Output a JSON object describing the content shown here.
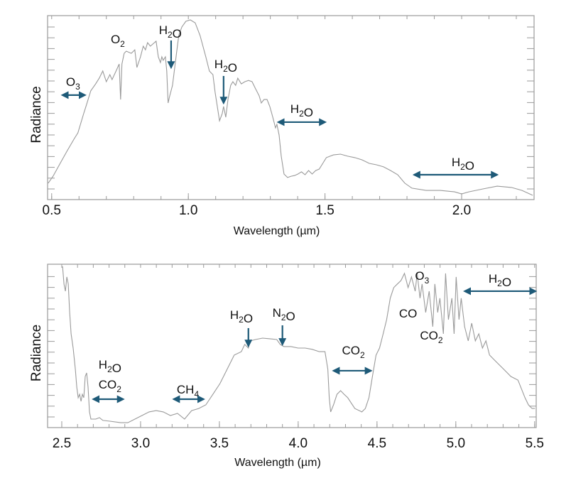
{
  "colors": {
    "curve": "#9a9a9a",
    "arrow": "#1e5a78",
    "frame": "#9a9a9a",
    "text": "#111111"
  },
  "chart_data": [
    {
      "type": "line",
      "title": "",
      "xlabel": "Wavelength (µm)",
      "ylabel": "Radiance",
      "xlim": [
        0.485,
        2.265
      ],
      "ylim": [
        0,
        1
      ],
      "xticks": [
        0.5,
        1.0,
        1.5,
        2.0
      ],
      "xtick_labels": [
        "0.5",
        "1.0",
        "1.5",
        "2.0"
      ],
      "series": [
        {
          "name": "spectrum",
          "x": [
            0.487,
            0.505,
            0.531,
            0.557,
            0.583,
            0.596,
            0.617,
            0.627,
            0.643,
            0.661,
            0.674,
            0.687,
            0.7,
            0.713,
            0.721,
            0.739,
            0.747,
            0.752,
            0.757,
            0.765,
            0.773,
            0.791,
            0.804,
            0.812,
            0.825,
            0.835,
            0.843,
            0.851,
            0.861,
            0.882,
            0.89,
            0.898,
            0.903,
            0.908,
            0.916,
            0.921,
            0.926,
            0.932,
            0.942,
            0.955,
            0.965,
            0.976,
            0.991,
            1.007,
            1.025,
            1.043,
            1.064,
            1.077,
            1.09,
            1.098,
            1.106,
            1.114,
            1.119,
            1.124,
            1.129,
            1.137,
            1.145,
            1.155,
            1.163,
            1.173,
            1.181,
            1.194,
            1.207,
            1.22,
            1.233,
            1.246,
            1.259,
            1.267,
            1.277,
            1.288,
            1.298,
            1.309,
            1.319,
            1.324,
            1.332,
            1.34,
            1.35,
            1.363,
            1.376,
            1.389,
            1.401,
            1.414,
            1.427,
            1.44,
            1.453,
            1.466,
            1.479,
            1.492,
            1.505,
            1.531,
            1.557,
            1.583,
            1.609,
            1.636,
            1.662,
            1.688,
            1.714,
            1.74,
            1.766,
            1.792,
            1.818,
            1.87,
            1.922,
            1.974,
            2.0,
            2.026,
            2.078,
            2.13,
            2.182,
            2.221,
            2.26
          ],
          "y": [
            0.089,
            0.127,
            0.197,
            0.266,
            0.332,
            0.363,
            0.467,
            0.513,
            0.591,
            0.629,
            0.66,
            0.699,
            0.641,
            0.679,
            0.652,
            0.71,
            0.737,
            0.544,
            0.737,
            0.795,
            0.807,
            0.795,
            0.814,
            0.718,
            0.776,
            0.834,
            0.814,
            0.853,
            0.834,
            0.861,
            0.776,
            0.745,
            0.776,
            0.757,
            0.776,
            0.699,
            0.525,
            0.564,
            0.621,
            0.776,
            0.892,
            0.938,
            0.969,
            0.977,
            0.961,
            0.892,
            0.776,
            0.699,
            0.679,
            0.583,
            0.506,
            0.428,
            0.448,
            0.467,
            0.506,
            0.448,
            0.544,
            0.621,
            0.641,
            0.621,
            0.66,
            0.629,
            0.641,
            0.648,
            0.641,
            0.602,
            0.564,
            0.525,
            0.544,
            0.544,
            0.506,
            0.448,
            0.39,
            0.409,
            0.351,
            0.236,
            0.139,
            0.12,
            0.127,
            0.131,
            0.139,
            0.151,
            0.135,
            0.158,
            0.139,
            0.158,
            0.166,
            0.197,
            0.228,
            0.243,
            0.247,
            0.236,
            0.228,
            0.216,
            0.197,
            0.189,
            0.178,
            0.158,
            0.135,
            0.089,
            0.062,
            0.05,
            0.05,
            0.042,
            0.031,
            0.042,
            0.058,
            0.073,
            0.066,
            0.05,
            0.023
          ]
        }
      ],
      "annotations": [
        {
          "label": "O3",
          "x": 0.578,
          "y": 0.64,
          "arrow": "double",
          "from": [
            0.539,
            0.568
          ],
          "to": [
            0.622,
            0.568
          ]
        },
        {
          "label": "O2",
          "x": 0.742,
          "y": 0.873,
          "arrow": "none"
        },
        {
          "label": "H2O",
          "x": 0.934,
          "y": 0.923,
          "arrow": "down",
          "from": [
            0.937,
            0.865
          ],
          "to": [
            0.937,
            0.718
          ]
        },
        {
          "label": "H2O",
          "x": 1.137,
          "y": 0.737,
          "arrow": "down",
          "from": [
            1.129,
            0.672
          ],
          "to": [
            1.129,
            0.525
          ]
        },
        {
          "label": "H2O",
          "x": 1.415,
          "y": 0.494,
          "arrow": "double",
          "from": [
            1.329,
            0.421
          ],
          "to": [
            1.501,
            0.421
          ]
        },
        {
          "label": "H2O",
          "x": 2.005,
          "y": 0.205,
          "arrow": "double",
          "from": [
            1.826,
            0.135
          ],
          "to": [
            2.13,
            0.135
          ]
        }
      ]
    },
    {
      "type": "line",
      "title": "",
      "xlabel": "Wavelength (µm)",
      "ylabel": "Radiance",
      "xlim": [
        2.41,
        5.51
      ],
      "ylim": [
        0,
        1
      ],
      "xticks": [
        2.5,
        3.0,
        3.5,
        4.0,
        4.5,
        5.0,
        5.5
      ],
      "xtick_labels": [
        "2.5",
        "3.0",
        "3.5",
        "4.0",
        "4.5",
        "5.0",
        "5.5"
      ],
      "series": [
        {
          "name": "spectrum",
          "x": [
            2.505,
            2.514,
            2.523,
            2.532,
            2.541,
            2.55,
            2.559,
            2.572,
            2.586,
            2.595,
            2.604,
            2.613,
            2.622,
            2.631,
            2.64,
            2.649,
            2.658,
            2.667,
            2.676,
            2.685,
            2.716,
            2.739,
            2.761,
            2.806,
            2.874,
            2.919,
            2.964,
            3.009,
            3.054,
            3.099,
            3.144,
            3.189,
            3.234,
            3.279,
            3.324,
            3.369,
            3.414,
            3.459,
            3.504,
            3.549,
            3.594,
            3.639,
            3.661,
            3.684,
            3.697,
            3.729,
            3.774,
            3.819,
            3.864,
            3.886,
            3.909,
            3.954,
            3.999,
            4.044,
            4.089,
            4.134,
            4.17,
            4.188,
            4.197,
            4.206,
            4.224,
            4.246,
            4.269,
            4.291,
            4.314,
            4.359,
            4.404,
            4.426,
            4.449,
            4.471,
            4.494,
            4.516,
            4.539,
            4.561,
            4.584,
            4.606,
            4.629,
            4.652,
            4.674,
            4.697,
            4.719,
            4.742,
            4.755,
            4.773,
            4.786,
            4.809,
            4.831,
            4.854,
            4.867,
            4.885,
            4.899,
            4.921,
            4.935,
            4.953,
            4.975,
            4.989,
            5.002,
            5.02,
            5.034,
            5.056,
            5.079,
            5.101,
            5.124,
            5.146,
            5.169,
            5.191,
            5.214,
            5.259,
            5.304,
            5.349,
            5.394,
            5.439,
            5.461,
            5.484,
            5.502
          ],
          "y": [
            0.987,
            0.879,
            0.835,
            0.922,
            0.879,
            0.705,
            0.574,
            0.487,
            0.357,
            0.248,
            0.183,
            0.204,
            0.161,
            0.204,
            0.183,
            0.313,
            0.335,
            0.248,
            0.096,
            0.052,
            0.052,
            0.061,
            0.044,
            0.039,
            0.03,
            0.03,
            0.052,
            0.074,
            0.096,
            0.104,
            0.096,
            0.074,
            0.087,
            0.052,
            0.104,
            0.117,
            0.139,
            0.204,
            0.27,
            0.357,
            0.444,
            0.465,
            0.509,
            0.487,
            0.531,
            0.539,
            0.548,
            0.544,
            0.539,
            0.509,
            0.496,
            0.496,
            0.487,
            0.487,
            0.479,
            0.465,
            0.465,
            0.357,
            0.183,
            0.096,
            0.139,
            0.204,
            0.226,
            0.204,
            0.183,
            0.117,
            0.096,
            0.117,
            0.183,
            0.313,
            0.444,
            0.487,
            0.574,
            0.661,
            0.792,
            0.857,
            0.879,
            0.9,
            0.944,
            0.857,
            0.922,
            0.835,
            0.944,
            0.792,
            0.879,
            0.705,
            0.835,
            0.618,
            0.879,
            0.705,
            0.792,
            0.574,
            0.944,
            0.661,
            0.792,
            0.574,
            0.922,
            0.661,
            0.792,
            0.618,
            0.531,
            0.639,
            0.531,
            0.574,
            0.487,
            0.531,
            0.444,
            0.4,
            0.357,
            0.313,
            0.291,
            0.183,
            0.139,
            0.117,
            0.117
          ]
        }
      ],
      "annotations": [
        {
          "label": "H2O",
          "x": 2.806,
          "y": 0.387,
          "arrow": "none"
        },
        {
          "label": "CO2",
          "x": 2.806,
          "y": 0.265,
          "arrow": "double",
          "from": [
            2.7,
            0.174
          ],
          "to": [
            2.89,
            0.174
          ]
        },
        {
          "label": "CH4",
          "x": 3.3,
          "y": 0.235,
          "arrow": "double",
          "from": [
            3.21,
            0.174
          ],
          "to": [
            3.4,
            0.174
          ]
        },
        {
          "label": "H2O",
          "x": 3.64,
          "y": 0.691,
          "arrow": "down",
          "from": [
            3.684,
            0.609
          ],
          "to": [
            3.684,
            0.5
          ]
        },
        {
          "label": "N2O",
          "x": 3.909,
          "y": 0.704,
          "arrow": "down",
          "from": [
            3.9,
            0.626
          ],
          "to": [
            3.9,
            0.509
          ]
        },
        {
          "label": "CO2",
          "x": 4.35,
          "y": 0.474,
          "arrow": "double",
          "from": [
            4.224,
            0.348
          ],
          "to": [
            4.462,
            0.348
          ]
        },
        {
          "label": "O3",
          "x": 4.786,
          "y": 0.93,
          "arrow": "none"
        },
        {
          "label": "CO",
          "x": 4.697,
          "y": 0.7,
          "arrow": "none"
        },
        {
          "label": "CO2",
          "x": 4.845,
          "y": 0.565,
          "arrow": "none"
        },
        {
          "label": "H2O",
          "x": 5.28,
          "y": 0.913,
          "arrow": "double",
          "from": [
            5.056,
            0.835
          ],
          "to": [
            5.506,
            0.835
          ]
        }
      ]
    }
  ]
}
